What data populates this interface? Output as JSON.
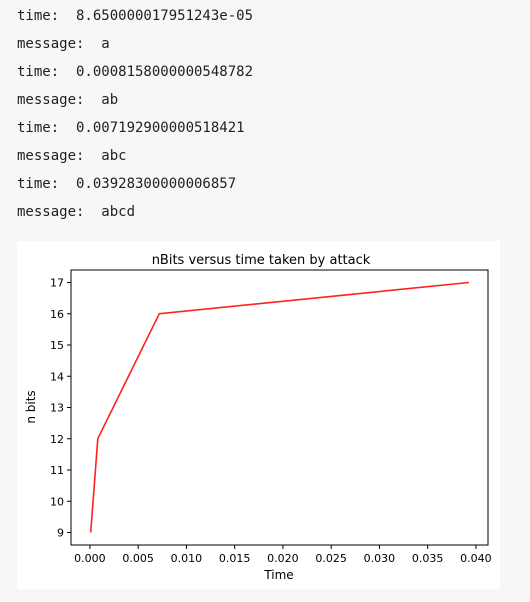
{
  "output_lines": [
    "time:  8.650000017951243e-05",
    "message:  a",
    "time:  0.0008158000000548782",
    "message:  ab",
    "time:  0.007192900000518421",
    "message:  abc",
    "time:  0.03928300000006857",
    "message:  abcd"
  ],
  "chart_data": {
    "type": "line",
    "title": "nBits versus time taken by attack",
    "xlabel": "Time",
    "ylabel": "n bits",
    "x": [
      8.65e-05,
      0.0008158,
      0.0071929,
      0.039283
    ],
    "series": [
      {
        "values": [
          9,
          12,
          16,
          17
        ],
        "color": "#ff2020"
      }
    ],
    "xlim": [
      -0.00196,
      0.04125
    ],
    "ylim": [
      8.6,
      17.4
    ],
    "xticks": [
      0.0,
      0.005,
      0.01,
      0.015,
      0.02,
      0.025,
      0.03,
      0.035,
      0.04
    ],
    "xtick_labels": [
      "0.000",
      "0.005",
      "0.010",
      "0.015",
      "0.020",
      "0.025",
      "0.030",
      "0.035",
      "0.040"
    ],
    "yticks": [
      9,
      10,
      11,
      12,
      13,
      14,
      15,
      16,
      17
    ],
    "ytick_labels": [
      "9",
      "10",
      "11",
      "12",
      "13",
      "14",
      "15",
      "16",
      "17"
    ],
    "grid": false,
    "legend": false
  }
}
